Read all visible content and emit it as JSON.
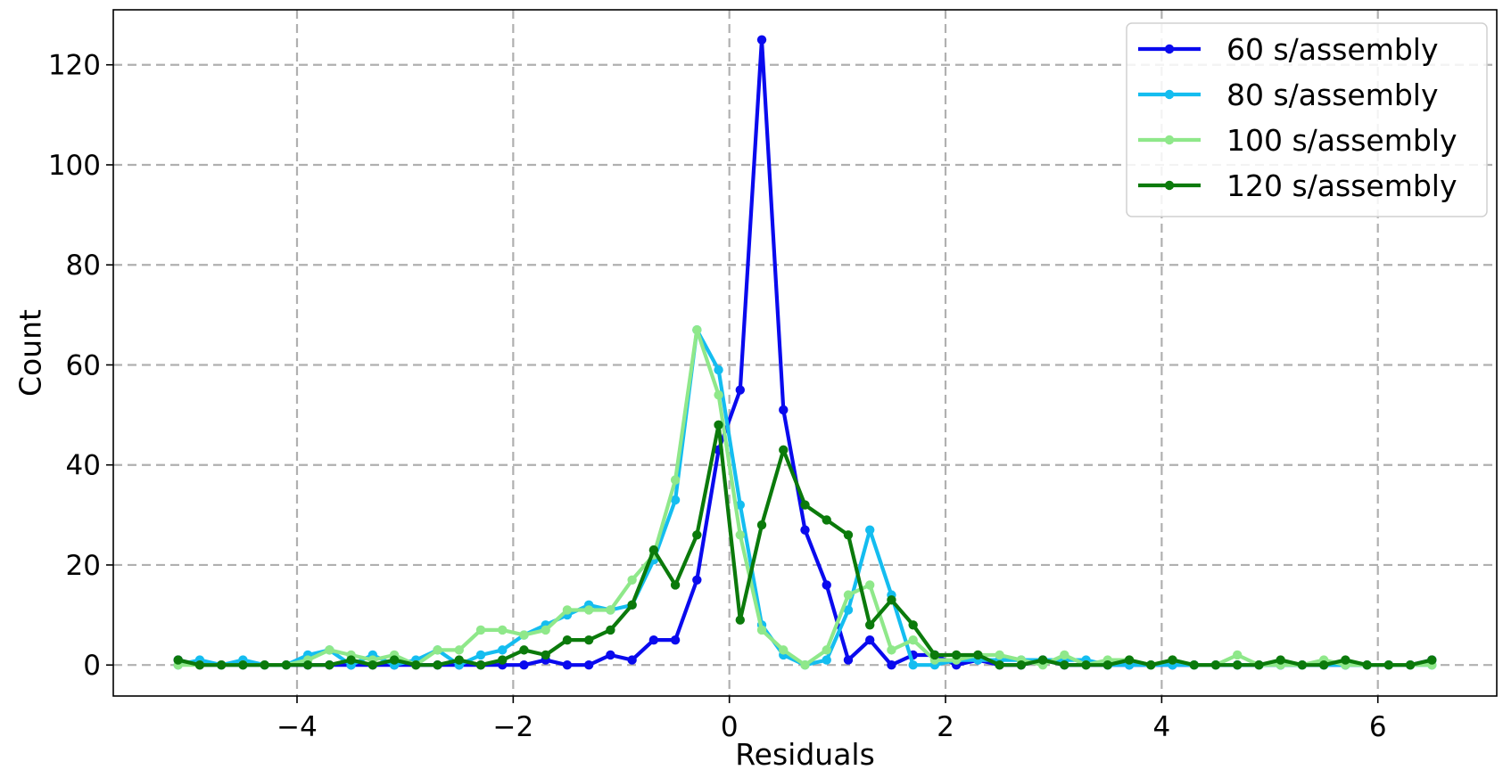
{
  "chart_data": {
    "type": "line",
    "title": "",
    "xlabel": "Residuals",
    "ylabel": "Count",
    "xlim": [
      -5.7,
      7.1
    ],
    "ylim": [
      -6.2,
      131
    ],
    "xticks": [
      -4,
      -2,
      0,
      2,
      4,
      6
    ],
    "xtick_labels": [
      "−4",
      "−2",
      "0",
      "2",
      "4",
      "6"
    ],
    "yticks": [
      0,
      20,
      40,
      60,
      80,
      100,
      120
    ],
    "ytick_labels": [
      "0",
      "20",
      "40",
      "60",
      "80",
      "100",
      "120"
    ],
    "grid": true,
    "legend": "top-right",
    "x": [
      -5.1,
      -4.9,
      -4.7,
      -4.5,
      -4.3,
      -4.1,
      -3.9,
      -3.7,
      -3.5,
      -3.3,
      -3.1,
      -2.9,
      -2.7,
      -2.5,
      -2.3,
      -2.1,
      -1.9,
      -1.7,
      -1.5,
      -1.3,
      -1.1,
      -0.9,
      -0.7,
      -0.5,
      -0.3,
      -0.1,
      0.1,
      0.3,
      0.5,
      0.7,
      0.9,
      1.1,
      1.3,
      1.5,
      1.7,
      1.9,
      2.1,
      2.3,
      2.5,
      2.7,
      2.9,
      3.1,
      3.3,
      3.5,
      3.7,
      3.9,
      4.1,
      4.3,
      4.5,
      4.7,
      4.9,
      5.1,
      5.3,
      5.5,
      5.7,
      5.9,
      6.1,
      6.3,
      6.5
    ],
    "series": [
      {
        "name": "60 s/assembly",
        "color": "#0a0aee",
        "values": [
          1,
          0,
          0,
          0,
          0,
          0,
          0,
          0,
          0,
          0,
          0,
          0,
          0,
          0,
          0,
          0,
          0,
          1,
          0,
          0,
          2,
          1,
          5,
          5,
          17,
          43,
          55,
          125,
          51,
          27,
          16,
          1,
          5,
          0,
          2,
          2,
          0,
          1,
          0,
          0,
          1,
          0,
          0,
          0,
          0,
          0,
          0,
          0,
          0,
          0,
          0,
          0,
          0,
          0,
          0,
          0,
          0,
          0,
          1
        ]
      },
      {
        "name": "80 s/assembly",
        "color": "#14bdf0",
        "values": [
          0,
          1,
          0,
          1,
          0,
          0,
          2,
          3,
          0,
          2,
          0,
          1,
          3,
          0,
          2,
          3,
          6,
          8,
          10,
          12,
          11,
          12,
          21,
          33,
          67,
          59,
          32,
          8,
          2,
          0,
          1,
          11,
          27,
          14,
          0,
          0,
          1,
          1,
          1,
          1,
          1,
          1,
          1,
          0,
          0,
          0,
          0,
          0,
          0,
          0,
          0,
          0,
          0,
          0,
          0,
          0,
          0,
          0,
          0
        ]
      },
      {
        "name": "100 s/assembly",
        "color": "#8fe88a",
        "values": [
          0,
          0,
          0,
          0,
          0,
          0,
          1,
          3,
          2,
          1,
          2,
          0,
          3,
          3,
          7,
          7,
          6,
          7,
          11,
          11,
          11,
          17,
          22,
          37,
          67,
          54,
          26,
          7,
          3,
          0,
          3,
          14,
          16,
          3,
          5,
          1,
          1,
          2,
          2,
          1,
          0,
          2,
          0,
          1,
          1,
          0,
          1,
          0,
          0,
          2,
          0,
          0,
          0,
          1,
          0,
          0,
          0,
          0,
          0
        ]
      },
      {
        "name": "120 s/assembly",
        "color": "#0b7a0b",
        "values": [
          1,
          0,
          0,
          0,
          0,
          0,
          0,
          0,
          1,
          0,
          1,
          0,
          0,
          1,
          0,
          1,
          3,
          2,
          5,
          5,
          7,
          12,
          23,
          16,
          26,
          48,
          9,
          28,
          43,
          32,
          29,
          26,
          8,
          13,
          8,
          2,
          2,
          2,
          0,
          0,
          1,
          0,
          0,
          0,
          1,
          0,
          1,
          0,
          0,
          0,
          0,
          1,
          0,
          0,
          1,
          0,
          0,
          0,
          1
        ]
      }
    ]
  }
}
